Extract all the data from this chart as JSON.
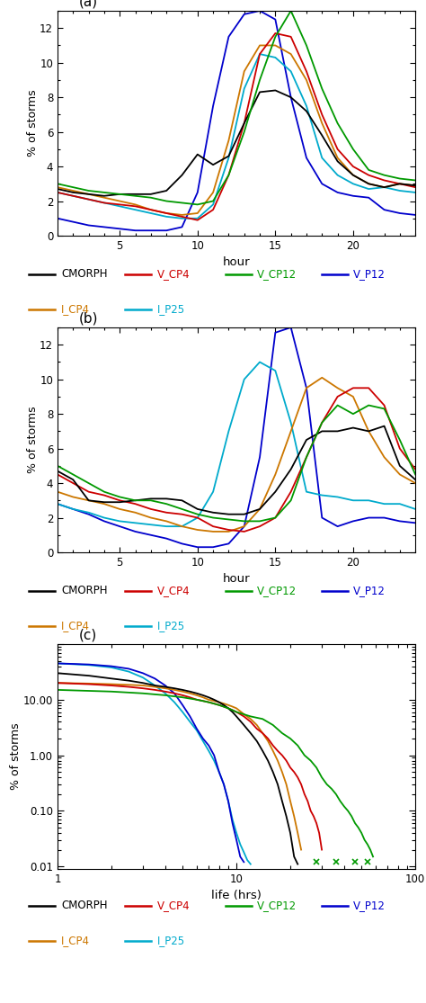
{
  "panel_a": {
    "title": "(a)",
    "xlabel": "hour",
    "ylabel": "% of storms",
    "xlim": [
      1,
      24
    ],
    "ylim": [
      0,
      13
    ],
    "yticks": [
      0,
      2,
      4,
      6,
      8,
      10,
      12
    ],
    "xticks": [
      5,
      10,
      15,
      20
    ],
    "series_order": [
      "V_P12",
      "I_P25",
      "I_CP4",
      "V_CP4",
      "CMORPH",
      "V_CP12"
    ],
    "series": {
      "CMORPH": {
        "color": "#000000",
        "x": [
          1,
          2,
          3,
          4,
          5,
          6,
          7,
          8,
          9,
          10,
          11,
          12,
          13,
          14,
          15,
          16,
          17,
          18,
          19,
          20,
          21,
          22,
          23,
          24
        ],
        "y": [
          2.7,
          2.5,
          2.4,
          2.3,
          2.4,
          2.4,
          2.4,
          2.6,
          3.5,
          4.7,
          4.1,
          4.6,
          6.5,
          8.3,
          8.4,
          8.0,
          7.2,
          5.8,
          4.3,
          3.5,
          3.0,
          2.8,
          3.0,
          2.9
        ]
      },
      "V_CP4": {
        "color": "#cc0000",
        "x": [
          1,
          2,
          3,
          4,
          5,
          6,
          7,
          8,
          9,
          10,
          11,
          12,
          13,
          14,
          15,
          16,
          17,
          18,
          19,
          20,
          21,
          22,
          23,
          24
        ],
        "y": [
          2.5,
          2.3,
          2.1,
          1.9,
          1.8,
          1.7,
          1.5,
          1.3,
          1.1,
          0.9,
          1.5,
          3.5,
          6.5,
          10.5,
          11.7,
          11.5,
          9.5,
          7.0,
          5.0,
          4.0,
          3.5,
          3.2,
          3.0,
          2.8
        ]
      },
      "V_CP12": {
        "color": "#009900",
        "x": [
          1,
          2,
          3,
          4,
          5,
          6,
          7,
          8,
          9,
          10,
          11,
          12,
          13,
          14,
          15,
          16,
          17,
          18,
          19,
          20,
          21,
          22,
          23,
          24
        ],
        "y": [
          3.0,
          2.8,
          2.6,
          2.5,
          2.4,
          2.3,
          2.2,
          2.0,
          1.9,
          1.8,
          2.0,
          3.5,
          6.0,
          9.0,
          11.5,
          13.0,
          11.0,
          8.5,
          6.5,
          5.0,
          3.8,
          3.5,
          3.3,
          3.2
        ]
      },
      "V_P12": {
        "color": "#0000cc",
        "x": [
          1,
          2,
          3,
          4,
          5,
          6,
          7,
          8,
          9,
          10,
          11,
          12,
          13,
          14,
          15,
          16,
          17,
          18,
          19,
          20,
          21,
          22,
          23,
          24
        ],
        "y": [
          1.0,
          0.8,
          0.6,
          0.5,
          0.4,
          0.3,
          0.3,
          0.3,
          0.5,
          2.5,
          7.5,
          11.5,
          12.8,
          13.0,
          12.5,
          8.0,
          4.5,
          3.0,
          2.5,
          2.3,
          2.2,
          1.5,
          1.3,
          1.2
        ]
      },
      "I_CP4": {
        "color": "#cc7700",
        "x": [
          1,
          2,
          3,
          4,
          5,
          6,
          7,
          8,
          9,
          10,
          11,
          12,
          13,
          14,
          15,
          16,
          17,
          18,
          19,
          20,
          21,
          22,
          23,
          24
        ],
        "y": [
          2.8,
          2.6,
          2.4,
          2.2,
          2.0,
          1.8,
          1.5,
          1.3,
          1.2,
          1.3,
          2.5,
          5.5,
          9.5,
          11.0,
          11.0,
          10.5,
          9.0,
          6.5,
          4.5,
          3.5,
          3.0,
          2.8,
          3.0,
          2.9
        ]
      },
      "I_P25": {
        "color": "#00aacc",
        "x": [
          1,
          2,
          3,
          4,
          5,
          6,
          7,
          8,
          9,
          10,
          11,
          12,
          13,
          14,
          15,
          16,
          17,
          18,
          19,
          20,
          21,
          22,
          23,
          24
        ],
        "y": [
          2.5,
          2.3,
          2.1,
          1.9,
          1.7,
          1.5,
          1.3,
          1.1,
          1.0,
          1.0,
          1.8,
          4.5,
          8.5,
          10.5,
          10.3,
          9.5,
          7.5,
          4.5,
          3.5,
          3.0,
          2.7,
          2.8,
          2.6,
          2.5
        ]
      }
    }
  },
  "panel_b": {
    "title": "(b)",
    "xlabel": "hour",
    "ylabel": "% of storms",
    "xlim": [
      1,
      24
    ],
    "ylim": [
      0,
      13
    ],
    "yticks": [
      0,
      2,
      4,
      6,
      8,
      10,
      12
    ],
    "xticks": [
      5,
      10,
      15,
      20
    ],
    "series_order": [
      "V_P12",
      "I_P25",
      "I_CP4",
      "V_CP4",
      "CMORPH",
      "V_CP12"
    ],
    "series": {
      "CMORPH": {
        "color": "#000000",
        "x": [
          1,
          2,
          3,
          4,
          5,
          6,
          7,
          8,
          9,
          10,
          11,
          12,
          13,
          14,
          15,
          16,
          17,
          18,
          19,
          20,
          21,
          22,
          23,
          24
        ],
        "y": [
          4.7,
          4.2,
          3.0,
          2.9,
          2.9,
          3.0,
          3.1,
          3.1,
          3.0,
          2.5,
          2.3,
          2.2,
          2.2,
          2.5,
          3.5,
          4.8,
          6.5,
          7.0,
          7.0,
          7.2,
          7.0,
          7.3,
          5.0,
          4.2
        ]
      },
      "V_CP4": {
        "color": "#cc0000",
        "x": [
          1,
          2,
          3,
          4,
          5,
          6,
          7,
          8,
          9,
          10,
          11,
          12,
          13,
          14,
          15,
          16,
          17,
          18,
          19,
          20,
          21,
          22,
          23,
          24
        ],
        "y": [
          4.5,
          4.0,
          3.5,
          3.3,
          3.0,
          2.8,
          2.5,
          2.3,
          2.2,
          2.0,
          1.5,
          1.3,
          1.2,
          1.5,
          2.0,
          3.5,
          5.5,
          7.5,
          9.0,
          9.5,
          9.5,
          8.5,
          6.0,
          4.8
        ]
      },
      "V_CP12": {
        "color": "#009900",
        "x": [
          1,
          2,
          3,
          4,
          5,
          6,
          7,
          8,
          9,
          10,
          11,
          12,
          13,
          14,
          15,
          16,
          17,
          18,
          19,
          20,
          21,
          22,
          23,
          24
        ],
        "y": [
          5.0,
          4.5,
          4.0,
          3.5,
          3.2,
          3.0,
          3.0,
          2.8,
          2.5,
          2.2,
          2.0,
          1.9,
          1.8,
          1.8,
          2.0,
          3.0,
          5.5,
          7.5,
          8.5,
          8.0,
          8.5,
          8.3,
          6.5,
          4.5
        ]
      },
      "V_P12": {
        "color": "#0000cc",
        "x": [
          1,
          2,
          3,
          4,
          5,
          6,
          7,
          8,
          9,
          10,
          11,
          12,
          13,
          14,
          15,
          16,
          17,
          18,
          19,
          20,
          21,
          22,
          23,
          24
        ],
        "y": [
          2.8,
          2.5,
          2.2,
          1.8,
          1.5,
          1.2,
          1.0,
          0.8,
          0.5,
          0.3,
          0.3,
          0.5,
          1.5,
          5.5,
          12.7,
          13.0,
          9.5,
          2.0,
          1.5,
          1.8,
          2.0,
          2.0,
          1.8,
          1.7
        ]
      },
      "I_CP4": {
        "color": "#cc7700",
        "x": [
          1,
          2,
          3,
          4,
          5,
          6,
          7,
          8,
          9,
          10,
          11,
          12,
          13,
          14,
          15,
          16,
          17,
          18,
          19,
          20,
          21,
          22,
          23,
          24
        ],
        "y": [
          3.5,
          3.2,
          3.0,
          2.8,
          2.5,
          2.3,
          2.0,
          1.8,
          1.5,
          1.3,
          1.2,
          1.2,
          1.5,
          2.5,
          4.5,
          7.0,
          9.5,
          10.1,
          9.5,
          9.0,
          7.0,
          5.5,
          4.5,
          4.0
        ]
      },
      "I_P25": {
        "color": "#00aacc",
        "x": [
          1,
          2,
          3,
          4,
          5,
          6,
          7,
          8,
          9,
          10,
          11,
          12,
          13,
          14,
          15,
          16,
          17,
          18,
          19,
          20,
          21,
          22,
          23,
          24
        ],
        "y": [
          2.8,
          2.5,
          2.3,
          2.0,
          1.8,
          1.7,
          1.6,
          1.5,
          1.5,
          2.0,
          3.5,
          7.0,
          10.0,
          11.0,
          10.5,
          7.5,
          3.5,
          3.3,
          3.2,
          3.0,
          3.0,
          2.8,
          2.8,
          2.5
        ]
      }
    }
  },
  "panel_c": {
    "title": "(c)",
    "xlabel": "life (hrs)",
    "ylabel": "% of storms",
    "xlim": [
      1,
      100
    ],
    "series_order": [
      "I_P25",
      "V_P12",
      "I_CP4",
      "V_CP4",
      "CMORPH",
      "V_CP12"
    ],
    "series": {
      "CMORPH": {
        "color": "#000000",
        "x": [
          1,
          1.5,
          2,
          2.5,
          3,
          3.5,
          4,
          4.5,
          5,
          5.5,
          6,
          6.5,
          7,
          7.5,
          8,
          8.5,
          9,
          9.5,
          10,
          11,
          12,
          13,
          14,
          15,
          16,
          17,
          18,
          19,
          20,
          21,
          22
        ],
        "y": [
          30,
          27,
          24,
          22,
          20,
          18,
          17,
          16,
          15,
          14,
          13,
          12,
          11,
          10,
          9.0,
          8.0,
          7.0,
          6.0,
          5.0,
          3.5,
          2.5,
          1.8,
          1.2,
          0.8,
          0.5,
          0.3,
          0.15,
          0.08,
          0.04,
          0.015,
          0.011
        ]
      },
      "V_CP4": {
        "color": "#cc0000",
        "x": [
          1,
          1.5,
          2,
          2.5,
          3,
          3.5,
          4,
          4.5,
          5,
          5.5,
          6,
          6.5,
          7,
          7.5,
          8,
          8.5,
          9,
          9.5,
          10,
          11,
          12,
          13,
          14,
          15,
          16,
          17,
          18,
          19,
          20,
          21,
          22,
          23,
          24,
          25,
          26,
          27,
          28,
          29,
          30
        ],
        "y": [
          20,
          19,
          18,
          17,
          16,
          15,
          14,
          13,
          12,
          11,
          10,
          9.5,
          9.0,
          8.5,
          8.0,
          7.5,
          7.0,
          6.5,
          6.0,
          5.0,
          4.0,
          3.0,
          2.5,
          2.0,
          1.5,
          1.2,
          1.0,
          0.8,
          0.6,
          0.5,
          0.4,
          0.3,
          0.2,
          0.15,
          0.1,
          0.08,
          0.06,
          0.04,
          0.02
        ]
      },
      "V_CP12": {
        "color": "#009900",
        "x": [
          1,
          2,
          3,
          4,
          5,
          6,
          7,
          8,
          9,
          10,
          12,
          14,
          16,
          18,
          20,
          22,
          24,
          26,
          28,
          30,
          32,
          34,
          36,
          38,
          40,
          42,
          44,
          46,
          48,
          50,
          52,
          54,
          56,
          58
        ],
        "y": [
          15,
          14,
          13,
          12,
          11,
          10,
          9,
          8,
          7,
          6,
          5,
          4.5,
          3.5,
          2.5,
          2.0,
          1.5,
          1.0,
          0.8,
          0.6,
          0.4,
          0.3,
          0.25,
          0.2,
          0.15,
          0.12,
          0.1,
          0.08,
          0.06,
          0.05,
          0.04,
          0.03,
          0.025,
          0.02,
          0.015
        ]
      },
      "V_P12": {
        "color": "#0000cc",
        "x": [
          1,
          1.5,
          2,
          2.5,
          3,
          3.5,
          4,
          4.5,
          5,
          5.5,
          6,
          6.5,
          7,
          7.5,
          8,
          8.5,
          9,
          9.5,
          10,
          10.5,
          11
        ],
        "y": [
          45,
          43,
          40,
          36,
          30,
          24,
          18,
          13,
          8,
          5,
          3,
          2,
          1.5,
          1.0,
          0.5,
          0.3,
          0.15,
          0.06,
          0.03,
          0.015,
          0.012
        ]
      },
      "I_CP4": {
        "color": "#cc7700",
        "x": [
          1,
          1.5,
          2,
          2.5,
          3,
          3.5,
          4,
          4.5,
          5,
          5.5,
          6,
          6.5,
          7,
          7.5,
          8,
          8.5,
          9,
          9.5,
          10,
          11,
          12,
          13,
          14,
          15,
          16,
          17,
          18,
          19,
          20,
          21,
          22,
          23
        ],
        "y": [
          20,
          19.5,
          19,
          18.5,
          18,
          17,
          16,
          15,
          14,
          13,
          12,
          11,
          10,
          9.5,
          9.0,
          8.5,
          8.0,
          7.5,
          7.0,
          5.5,
          4.5,
          3.5,
          2.5,
          1.8,
          1.2,
          0.8,
          0.5,
          0.3,
          0.15,
          0.08,
          0.04,
          0.02
        ]
      },
      "I_P25": {
        "color": "#00aacc",
        "x": [
          1,
          1.5,
          2,
          2.5,
          3,
          3.5,
          4,
          4.5,
          5,
          5.5,
          6,
          6.5,
          7,
          7.5,
          8,
          8.5,
          9,
          9.5,
          10,
          10.5,
          11,
          11.5,
          12
        ],
        "y": [
          45,
          42,
          38,
          32,
          25,
          18,
          13,
          9,
          6,
          4,
          2.8,
          1.8,
          1.2,
          0.8,
          0.5,
          0.3,
          0.15,
          0.07,
          0.04,
          0.025,
          0.018,
          0.013,
          0.011
        ]
      }
    },
    "crosses": {
      "color": "#009900",
      "x": [
        28,
        36,
        46,
        54
      ],
      "y": [
        0.012,
        0.012,
        0.012,
        0.012
      ]
    }
  },
  "legend_entries": [
    {
      "label": "CMORPH",
      "color": "#000000"
    },
    {
      "label": "V_CP4",
      "color": "#cc0000"
    },
    {
      "label": "V_CP12",
      "color": "#009900"
    },
    {
      "label": "V_P12",
      "color": "#0000cc"
    },
    {
      "label": "I_CP4",
      "color": "#cc7700"
    },
    {
      "label": "I_P25",
      "color": "#00aacc"
    }
  ],
  "bg_color": "#ffffff"
}
